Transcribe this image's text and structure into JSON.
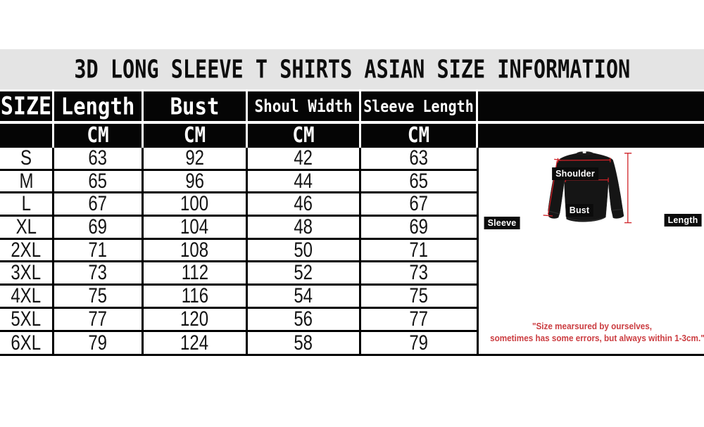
{
  "title": "3D LONG SLEEVE T SHIRTS ASIAN SIZE INFORMATION",
  "table": {
    "columns": [
      "SIZE",
      "Length",
      "Bust",
      "Shoul Width",
      "Sleeve Length"
    ],
    "unit_row": [
      "",
      "CM",
      "CM",
      "CM",
      "CM"
    ],
    "rows": [
      [
        "S",
        "63",
        "92",
        "42",
        "63"
      ],
      [
        "M",
        "65",
        "96",
        "44",
        "65"
      ],
      [
        "L",
        "67",
        "100",
        "46",
        "67"
      ],
      [
        "XL",
        "69",
        "104",
        "48",
        "69"
      ],
      [
        "2XL",
        "71",
        "108",
        "50",
        "71"
      ],
      [
        "3XL",
        "73",
        "112",
        "52",
        "73"
      ],
      [
        "4XL",
        "75",
        "116",
        "54",
        "75"
      ],
      [
        "5XL",
        "77",
        "120",
        "56",
        "77"
      ],
      [
        "6XL",
        "79",
        "124",
        "58",
        "79"
      ]
    ]
  },
  "diagram": {
    "labels": {
      "shoulder": "Shoulder",
      "bust": "Bust",
      "sleeve": "Sleeve",
      "length": "Length"
    },
    "note_line1": "\"Size mearsured by ourselves,",
    "note_line2": "sometimes has some errors, but always within 1-3cm.\""
  },
  "colors": {
    "title_band_gray": "#e4e4e4",
    "table_black": "#050505",
    "annotation_red": "#cf2127",
    "note_red": "#cb3c40"
  },
  "chart_data": {
    "type": "table",
    "title": "3D LONG SLEEVE T SHIRTS ASIAN SIZE INFORMATION",
    "columns": [
      "SIZE",
      "Length",
      "Bust",
      "Shoul Width",
      "Sleeve Length"
    ],
    "unit": "CM",
    "rows": [
      [
        "S",
        63,
        92,
        42,
        63
      ],
      [
        "M",
        65,
        96,
        44,
        65
      ],
      [
        "L",
        67,
        100,
        46,
        67
      ],
      [
        "XL",
        69,
        104,
        48,
        69
      ],
      [
        "2XL",
        71,
        108,
        50,
        71
      ],
      [
        "3XL",
        73,
        112,
        52,
        73
      ],
      [
        "4XL",
        75,
        116,
        54,
        75
      ],
      [
        "5XL",
        77,
        120,
        56,
        77
      ],
      [
        "6XL",
        79,
        124,
        58,
        79
      ]
    ],
    "annotations": [
      "Shoulder",
      "Bust",
      "Sleeve",
      "Length",
      "\"Size mearsured by ourselves, sometimes has some errors, but always within 1-3cm.\""
    ]
  }
}
